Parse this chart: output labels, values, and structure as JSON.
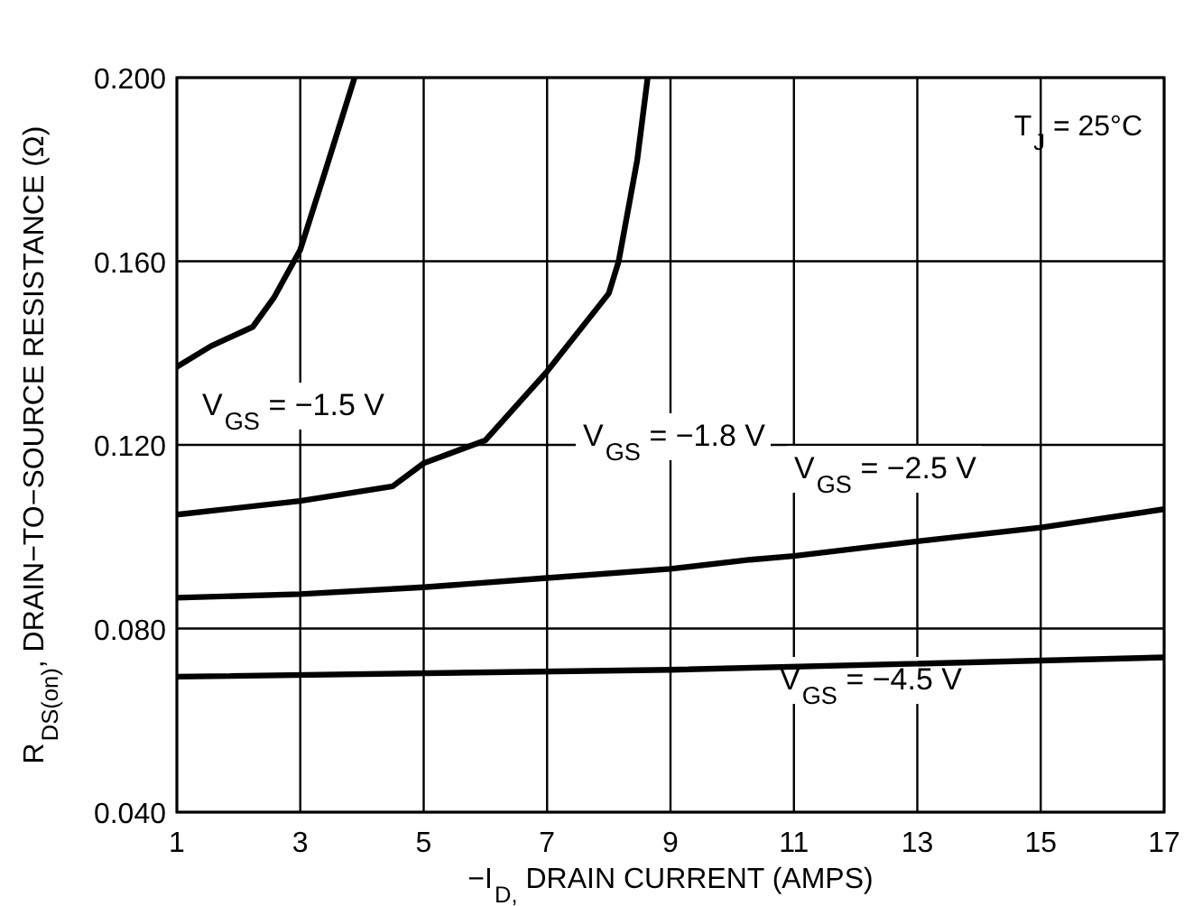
{
  "chart_data": {
    "type": "line",
    "xlabel": "−I$_{D,}$ DRAIN CURRENT (AMPS)",
    "ylabel": "R$_{DS(on)}$, DRAIN−TO−SOURCE RESISTANCE (Ω)",
    "annotations": [
      "T$_{J}$ = 25°C"
    ],
    "xlim": [
      1,
      17
    ],
    "xticks": [
      1,
      3,
      5,
      7,
      9,
      11,
      13,
      15,
      17
    ],
    "ylim": [
      0.04,
      0.2
    ],
    "yticks": [
      {
        "value": 0.04,
        "label": "0.040"
      },
      {
        "value": 0.08,
        "label": "0.080"
      },
      {
        "value": 0.12,
        "label": "0.120"
      },
      {
        "value": 0.16,
        "label": "0.160"
      },
      {
        "value": 0.2,
        "label": "0.200"
      }
    ],
    "grid": true,
    "legend": false,
    "marker": "none",
    "line_style": "solid",
    "series": [
      {
        "name": "V$_{GS}$ = −1.5 V",
        "color": "#000000",
        "x": [
          1,
          1.55,
          2.23,
          2.57,
          3,
          3.4,
          3.88
        ],
        "values": [
          0.137,
          0.1415,
          0.1457,
          0.152,
          0.1625,
          0.1794,
          0.2
        ]
      },
      {
        "name": "V$_{GS}$ = −1.8 V",
        "color": "#000000",
        "x": [
          1,
          3,
          4.5,
          5,
          6,
          7,
          8,
          8.16,
          8.46,
          8.63
        ],
        "values": [
          0.1048,
          0.1078,
          0.111,
          0.116,
          0.121,
          0.136,
          0.153,
          0.16,
          0.182,
          0.2
        ]
      },
      {
        "name": "V$_{GS}$ = −2.5 V",
        "color": "#000000",
        "x": [
          1,
          3,
          5,
          7,
          9,
          10.3,
          11,
          13,
          15,
          17
        ],
        "values": [
          0.0867,
          0.0875,
          0.089,
          0.091,
          0.093,
          0.095,
          0.0958,
          0.099,
          0.102,
          0.106
        ]
      },
      {
        "name": "V$_{GS}$ = −4.5 V",
        "color": "#000000",
        "x": [
          1,
          9,
          17
        ],
        "values": [
          0.0695,
          0.071,
          0.0737
        ]
      }
    ]
  }
}
